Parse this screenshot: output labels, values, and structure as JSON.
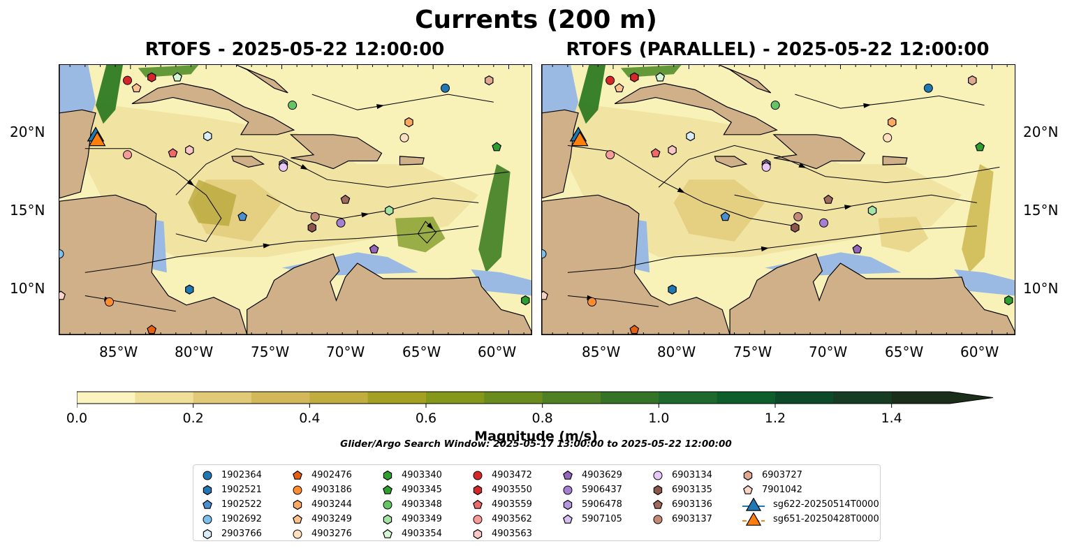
{
  "figure": {
    "suptitle": "Currents (200 m)",
    "panels": [
      {
        "title": "RTOFS - 2025-05-22 12:00:00"
      },
      {
        "title": "RTOFS (PARALLEL) - 2025-05-22 12:00:00"
      }
    ],
    "lat_labels": [
      "20°N",
      "15°N",
      "10°N"
    ],
    "lon_labels": [
      "85°W",
      "80°W",
      "75°W",
      "70°W",
      "65°W",
      "60°W"
    ],
    "extent": {
      "lon_min": -89.7,
      "lon_max": -58.5,
      "lat_min": 7.0,
      "lat_max": 24.4
    },
    "colors": {
      "land": "#cfb088",
      "water_shallow": "#9ab9e3",
      "low_speed": "#f8f2b8",
      "high_speed": "#4f8a1a"
    }
  },
  "colorbar": {
    "label": "Magnitude (m/s)",
    "ticks": [
      "0.0",
      "0.2",
      "0.4",
      "0.6",
      "0.8",
      "1.0",
      "1.2",
      "1.4"
    ],
    "min": 0.0,
    "max": 1.5,
    "extend": "max",
    "colors": [
      "#fbf4be",
      "#f0df98",
      "#e2c977",
      "#d2b858",
      "#c0ad3e",
      "#a4a021",
      "#86981a",
      "#6a8c1e",
      "#4f8024",
      "#357426",
      "#1e6a2c",
      "#0e5e2c",
      "#0c4a29",
      "#163d24",
      "#1b2e1a"
    ]
  },
  "search_window": "Glider/Argo Search Window: 2025-05-17 13:00:00 to 2025-05-22 12:00:00",
  "legend": {
    "columns": [
      [
        {
          "id": "1902364",
          "marker": "circle",
          "color": "#1f77b4"
        },
        {
          "id": "1902521",
          "marker": "hexagon",
          "color": "#1f77b4"
        },
        {
          "id": "1902522",
          "marker": "pentagon",
          "color": "#4a90d0"
        },
        {
          "id": "1902692",
          "marker": "circle",
          "color": "#7cc0ee"
        },
        {
          "id": "2903766",
          "marker": "hexagon",
          "color": "#d8ecfa"
        }
      ],
      [
        {
          "id": "4902476",
          "marker": "pentagon",
          "color": "#e8600f"
        },
        {
          "id": "4903186",
          "marker": "circle",
          "color": "#ff8c2e"
        },
        {
          "id": "4903244",
          "marker": "hexagon",
          "color": "#ffa95e"
        },
        {
          "id": "4903249",
          "marker": "pentagon",
          "color": "#ffc48c"
        },
        {
          "id": "4903276",
          "marker": "circle",
          "color": "#ffe0c0"
        }
      ],
      [
        {
          "id": "4903340",
          "marker": "hexagon",
          "color": "#2ca02c"
        },
        {
          "id": "4903345",
          "marker": "pentagon",
          "color": "#2ca02c"
        },
        {
          "id": "4903348",
          "marker": "circle",
          "color": "#66c466"
        },
        {
          "id": "4903349",
          "marker": "hexagon",
          "color": "#a3e3a3"
        },
        {
          "id": "4903354",
          "marker": "pentagon",
          "color": "#d6f7d6"
        }
      ],
      [
        {
          "id": "4903472",
          "marker": "circle",
          "color": "#d62728"
        },
        {
          "id": "4903550",
          "marker": "hexagon",
          "color": "#d62728"
        },
        {
          "id": "4903559",
          "marker": "pentagon",
          "color": "#ee6a6a"
        },
        {
          "id": "4903562",
          "marker": "circle",
          "color": "#f79a9a"
        },
        {
          "id": "4903563",
          "marker": "hexagon",
          "color": "#fbc6c6"
        }
      ],
      [
        {
          "id": "4903629",
          "marker": "pentagon",
          "color": "#9467bd"
        },
        {
          "id": "5906437",
          "marker": "circle",
          "color": "#a77fd0"
        },
        {
          "id": "5906478",
          "marker": "hexagon",
          "color": "#b898dd"
        },
        {
          "id": "5907105",
          "marker": "pentagon",
          "color": "#d8c0f2"
        }
      ],
      [
        {
          "id": "6903134",
          "marker": "circle",
          "color": "#e8c8f8"
        },
        {
          "id": "6903135",
          "marker": "hexagon",
          "color": "#8c564b"
        },
        {
          "id": "6903136",
          "marker": "pentagon",
          "color": "#a06a5c"
        },
        {
          "id": "6903137",
          "marker": "circle",
          "color": "#c48a78"
        }
      ],
      [
        {
          "id": "6903727",
          "marker": "hexagon",
          "color": "#e0a890"
        },
        {
          "id": "7901042",
          "marker": "pentagon",
          "color": "#fbd4c8"
        },
        {
          "id": "sg622-20250514T0000",
          "marker": "triangle",
          "color": "#1f77b4"
        },
        {
          "id": "sg651-20250428T0000",
          "marker": "triangle",
          "color": "#ff7f0e"
        }
      ]
    ]
  },
  "floats": [
    {
      "id": "1902364",
      "lon": -64.2,
      "lat": 22.9
    },
    {
      "id": "1902521",
      "lon": -81.1,
      "lat": 9.9
    },
    {
      "id": "1902522",
      "lon": -77.6,
      "lat": 14.6
    },
    {
      "id": "1902692",
      "lon": -89.7,
      "lat": 12.2
    },
    {
      "id": "2903766",
      "lon": -79.9,
      "lat": 19.8
    },
    {
      "id": "4902476",
      "lon": -83.6,
      "lat": 7.3
    },
    {
      "id": "4903186",
      "lon": -86.4,
      "lat": 9.1
    },
    {
      "id": "4903244",
      "lon": -66.6,
      "lat": 20.7
    },
    {
      "id": "4903249",
      "lon": -84.6,
      "lat": 22.9
    },
    {
      "id": "4903276",
      "lon": -66.9,
      "lat": 19.7
    },
    {
      "id": "4903340",
      "lon": -58.9,
      "lat": 9.2
    },
    {
      "id": "4903345",
      "lon": -60.8,
      "lat": 19.1
    },
    {
      "id": "4903348",
      "lon": -74.3,
      "lat": 21.8
    },
    {
      "id": "4903349",
      "lon": -67.9,
      "lat": 15.0
    },
    {
      "id": "4903354",
      "lon": -81.9,
      "lat": 23.6
    },
    {
      "id": "4903472",
      "lon": -85.2,
      "lat": 23.4
    },
    {
      "id": "4903550",
      "lon": -83.6,
      "lat": 23.6
    },
    {
      "id": "4903559",
      "lon": -82.2,
      "lat": 18.7
    },
    {
      "id": "4903562",
      "lon": -85.2,
      "lat": 18.6
    },
    {
      "id": "4903563",
      "lon": -81.1,
      "lat": 18.9
    },
    {
      "id": "4903629",
      "lon": -68.9,
      "lat": 12.5
    },
    {
      "id": "5906437",
      "lon": -71.1,
      "lat": 14.2
    },
    {
      "id": "5906478",
      "lon": -74.9,
      "lat": 18.0
    },
    {
      "id": "5907105",
      "lon": -74.9,
      "lat": 17.9
    },
    {
      "id": "6903134",
      "lon": -74.9,
      "lat": 17.8
    },
    {
      "id": "6903135",
      "lon": -73.0,
      "lat": 13.9
    },
    {
      "id": "6903136",
      "lon": -70.8,
      "lat": 15.7
    },
    {
      "id": "6903137",
      "lon": -72.8,
      "lat": 14.6
    },
    {
      "id": "6903727",
      "lon": -61.3,
      "lat": 23.4
    },
    {
      "id": "7901042",
      "lon": -89.6,
      "lat": 9.5
    }
  ],
  "gliders": [
    {
      "id": "sg622-20250514T0000",
      "lon": -87.3,
      "lat": 19.9
    },
    {
      "id": "sg651-20250428T0000",
      "lon": -87.2,
      "lat": 19.6
    }
  ]
}
